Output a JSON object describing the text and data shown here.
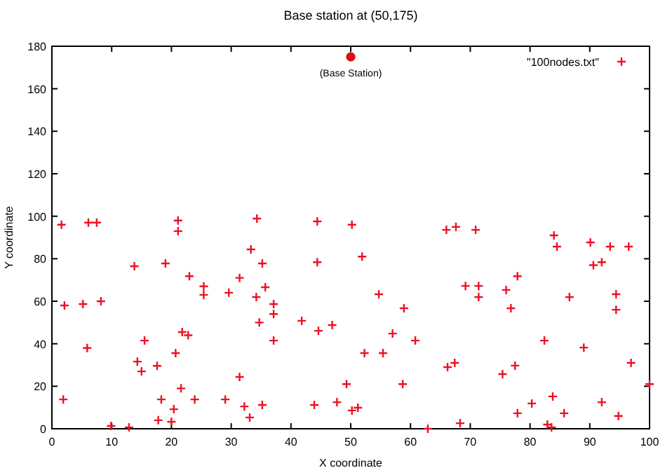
{
  "chart_data": {
    "type": "scatter",
    "title": "Base station at (50,175)",
    "xlabel": "X coordinate",
    "ylabel": "Y coordinate",
    "xlim": [
      0,
      100
    ],
    "xticks": [
      0,
      10,
      20,
      30,
      40,
      50,
      60,
      70,
      80,
      90,
      100
    ],
    "ylim": [
      0,
      180
    ],
    "yticks": [
      0,
      20,
      40,
      60,
      80,
      100,
      120,
      140,
      160,
      180
    ],
    "grid": false,
    "legend": "top right",
    "annotations": [
      {
        "text": "(Base Station)",
        "x": 50,
        "y": 175
      }
    ],
    "series": [
      {
        "name": "\"100nodes.txt\"",
        "color": "#ee1122",
        "marker": "cross",
        "x": [
          1.6,
          2.1,
          1.9,
          5.2,
          5.9,
          6.1,
          7.5,
          8.2,
          9.9,
          12.9,
          13.8,
          14.3,
          15,
          15.5,
          17.6,
          18.3,
          17.8,
          19,
          20,
          20.4,
          20.7,
          21.1,
          21.1,
          21.6,
          21.8,
          22.8,
          23.9,
          23,
          25.4,
          25.4,
          29,
          29.6,
          31.4,
          31.4,
          32.2,
          33.1,
          33.3,
          34.3,
          34.2,
          34.7,
          35.2,
          35.2,
          35.7,
          37.1,
          37.1,
          37.1,
          41.8,
          43.9,
          44.4,
          44.4,
          44.6,
          46.9,
          47.7,
          49.3,
          50.2,
          50.2,
          51.2,
          51.9,
          52.3,
          54.7,
          55.4,
          57,
          58.7,
          58.9,
          60.8,
          62.9,
          66,
          67.6,
          66.2,
          67.4,
          68.3,
          69.2,
          70.9,
          71.4,
          71.4,
          75.4,
          76,
          76.8,
          77.5,
          77.9,
          77.9,
          80.3,
          82.4,
          82.9,
          83.6,
          83.8,
          84,
          84.5,
          85.7,
          86.6,
          89,
          90.1,
          90.6,
          92,
          92,
          93.4,
          94.4,
          94.4,
          94.8,
          96.5,
          96.9,
          100
        ],
        "values": [
          96,
          58,
          13.8,
          58.7,
          38,
          97,
          97,
          60,
          1.3,
          0.7,
          76.5,
          31.6,
          27,
          41.5,
          29.6,
          13.8,
          4,
          77.8,
          3.3,
          9.2,
          35.6,
          98,
          93,
          19,
          45.5,
          44,
          13.8,
          71.8,
          67,
          63,
          13.8,
          64,
          71,
          24.4,
          10.5,
          5.3,
          84.4,
          98.9,
          62,
          50,
          11.2,
          77.8,
          66.6,
          58.7,
          54,
          41.5,
          50.8,
          11.2,
          97.6,
          78.4,
          46.1,
          48.8,
          12.5,
          21,
          96,
          8.6,
          9.9,
          81,
          35.6,
          63.3,
          35.6,
          44.8,
          21,
          56.7,
          41.5,
          0,
          93.6,
          95,
          29,
          31,
          2.6,
          67.2,
          93.6,
          67.2,
          62,
          25.7,
          65.3,
          56.7,
          29.7,
          71.8,
          7.3,
          11.9,
          41.5,
          2,
          0.7,
          15.2,
          91,
          85.7,
          7.3,
          62,
          38.2,
          87.7,
          77,
          78.4,
          12.5,
          85.7,
          63.3,
          56,
          6,
          85.7,
          31,
          21
        ]
      },
      {
        "color": "#dd1111",
        "marker": "circle",
        "x": [
          50
        ],
        "values": [
          175
        ]
      }
    ]
  }
}
